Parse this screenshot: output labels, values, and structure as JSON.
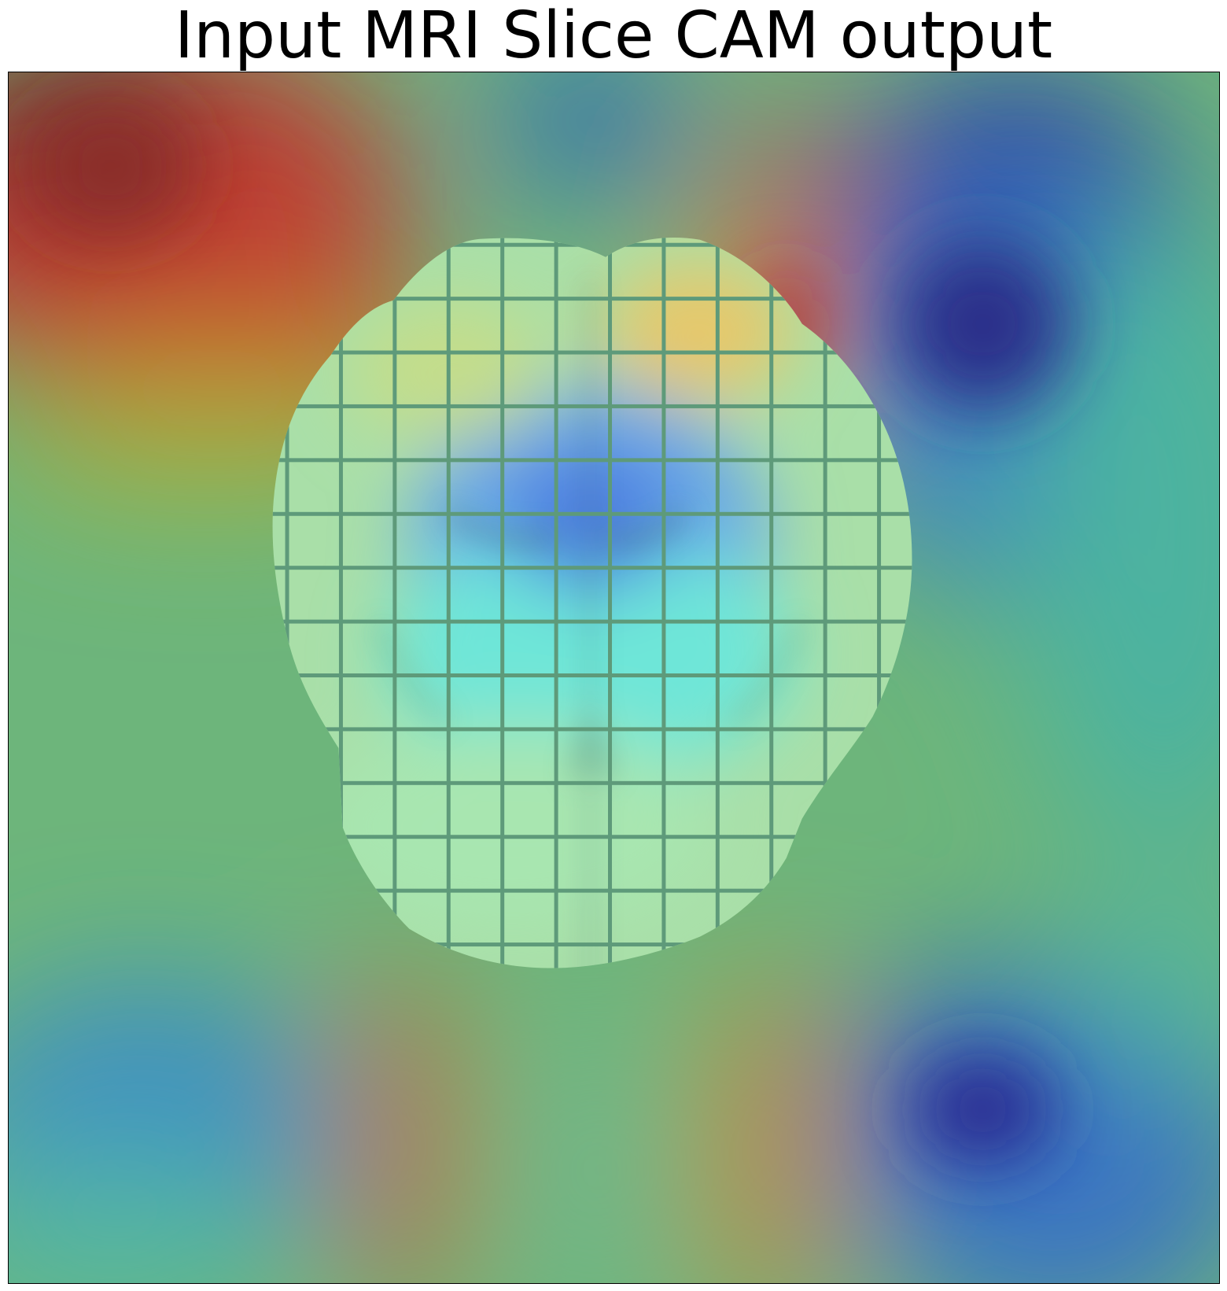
{
  "title": "Input MRI Slice CAM output",
  "image": {
    "content": "heatmap-overlay",
    "colormap": "jet",
    "hot_regions": [
      "top-left",
      "top-center-right",
      "bottom-center-left",
      "bottom-center-right"
    ],
    "cold_regions": [
      "top-right",
      "bottom-left",
      "bottom-right",
      "center"
    ]
  }
}
